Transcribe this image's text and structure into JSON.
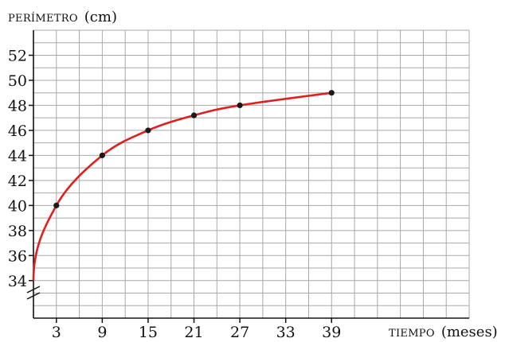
{
  "chart_data": {
    "type": "line",
    "y_axis_label": {
      "smallcaps": "PERÍMETRO",
      "unit": "(cm)"
    },
    "x_axis_label": {
      "smallcaps": "TIEMPO",
      "unit": "(meses)"
    },
    "x_ticks": [
      3,
      9,
      15,
      21,
      27,
      33,
      39
    ],
    "y_ticks": [
      34,
      36,
      38,
      40,
      42,
      44,
      46,
      48,
      50,
      52
    ],
    "x_range": [
      0,
      57
    ],
    "y_range": [
      31,
      54
    ],
    "y_axis_break": true,
    "grid": true,
    "series": [
      {
        "color": "#e0201f",
        "points": [
          {
            "x": 3,
            "y": 40
          },
          {
            "x": 9,
            "y": 44
          },
          {
            "x": 15,
            "y": 46
          },
          {
            "x": 21,
            "y": 47.2
          },
          {
            "x": 27,
            "y": 48
          },
          {
            "x": 39,
            "y": 49
          }
        ],
        "curve_start": {
          "x": 0,
          "y": 34
        }
      }
    ]
  }
}
